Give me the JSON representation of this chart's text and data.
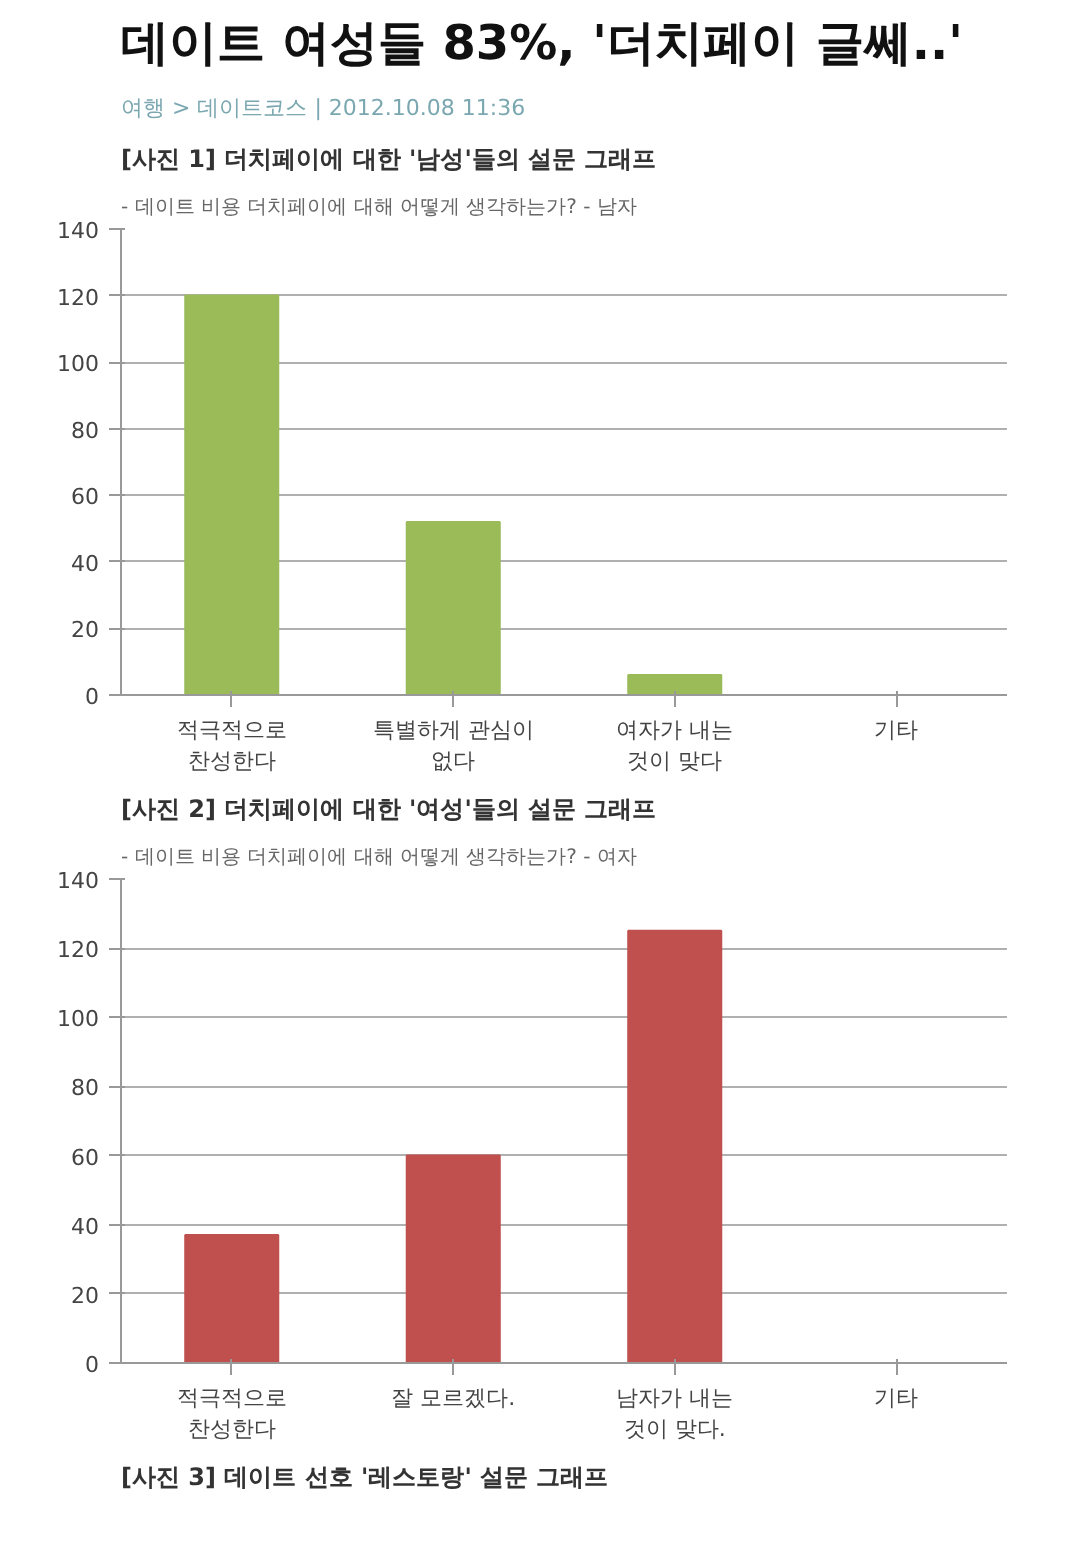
{
  "chart_data": [
    {
      "type": "bar",
      "title": "[사진 1] 더치페이에 대한 '남성'들의 설문 그래프",
      "subtitle": "- 데이트 비용 더치페이에 대해 어떻게 생각하는가? - 남자",
      "annotations": [
        "데이트 여성들 83%, '더치페이 글쎄..'",
        "여행 > 데이트코스 | 2012.10.08 11:36"
      ],
      "categories": [
        "적극적으로 찬성한다",
        "특별하게 관심이 없다",
        "여자가 내는 것이 맞다",
        "기타"
      ],
      "values": [
        120,
        52,
        6,
        0
      ],
      "color": "#9bbb59",
      "ylim": [
        0,
        140
      ],
      "yticks": [
        0,
        20,
        40,
        60,
        80,
        100,
        120,
        140
      ],
      "grid": "y",
      "legend": false
    },
    {
      "type": "bar",
      "title": "[사진 2] 더치페이에 대한 '여성'들의 설문 그래프",
      "subtitle": "- 데이트 비용 더치페이에 대해 어떻게 생각하는가? - 여자",
      "annotations": [
        "[사진 3] 데이트 선호 '레스토랑' 설문 그래프"
      ],
      "categories": [
        "적극적으로 찬성한다",
        "잘 모르겠다.",
        "남자가 내는 것이 맞다.",
        "기타"
      ],
      "values": [
        37,
        60,
        125,
        0
      ],
      "color": "#c0504d",
      "ylim": [
        0,
        140
      ],
      "yticks": [
        0,
        20,
        40,
        60,
        80,
        100,
        120,
        140
      ],
      "grid": "y",
      "legend": false
    }
  ]
}
